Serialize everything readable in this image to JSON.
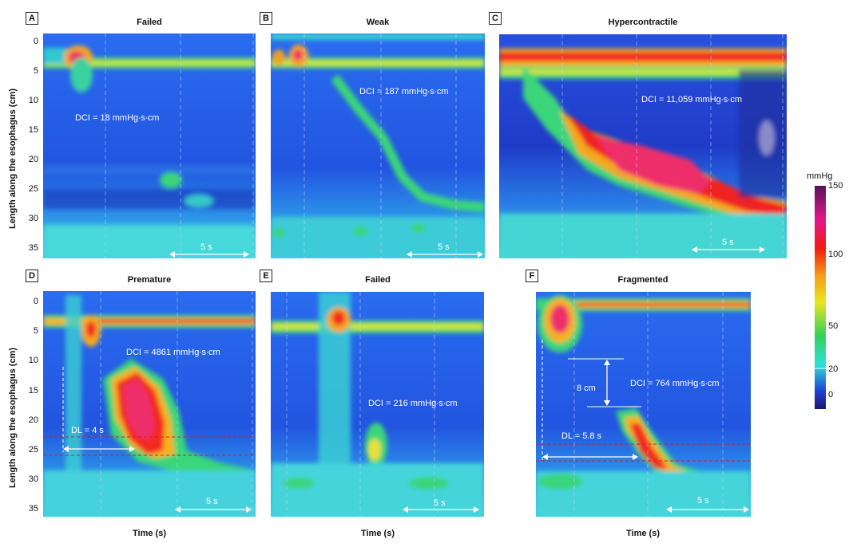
{
  "figure": {
    "ylabel": "Length along the esophagus (cm)",
    "xlabel": "Time (s)"
  },
  "colorbar": {
    "unit": "mmHg",
    "ticks": [
      "150",
      "100",
      "50",
      "20",
      "0"
    ]
  },
  "panels": [
    {
      "letter": "A",
      "title": "Failed",
      "dci": "DCI = 18 mmHg∙s∙cm",
      "scale": "5 s"
    },
    {
      "letter": "B",
      "title": "Weak",
      "dci": "DCI = 187 mmHg∙s∙cm",
      "scale": "5 s"
    },
    {
      "letter": "C",
      "title": "Hypercontractile",
      "dci": "DCI = 11,059 mmHg∙s∙cm",
      "scale": "5 s"
    },
    {
      "letter": "D",
      "title": "Premature",
      "dci": "DCI = 4861 mmHg∙s∙cm",
      "scale": "5 s",
      "dl": "DL = 4 s"
    },
    {
      "letter": "E",
      "title": "Failed",
      "dci": "DCI = 216 mmHg∙s∙cm",
      "scale": "5 s"
    },
    {
      "letter": "F",
      "title": "Fragmented",
      "dci": "DCI = 764 mmHg∙s∙cm",
      "scale": "5 s",
      "dl": "DL = 5.8 s",
      "gap": "8 cm"
    }
  ],
  "chart_data": [
    {
      "type": "heatmap",
      "title": "Failed",
      "ylabel": "Length along the esophagus (cm)",
      "yticks": [
        0,
        5,
        10,
        15,
        20,
        25,
        30,
        35
      ],
      "ylim": [
        0,
        36
      ],
      "value_unit": "mmHg",
      "colorbar_range": [
        0,
        150
      ],
      "annotations": [
        "DCI = 18 mmHg∙s∙cm",
        "5 s"
      ]
    },
    {
      "type": "heatmap",
      "title": "Weak",
      "ylim": [
        0,
        36
      ],
      "value_unit": "mmHg",
      "colorbar_range": [
        0,
        150
      ],
      "annotations": [
        "DCI = 187 mmHg∙s∙cm",
        "5 s"
      ]
    },
    {
      "type": "heatmap",
      "title": "Hypercontractile",
      "ylim": [
        0,
        36
      ],
      "value_unit": "mmHg",
      "colorbar_range": [
        0,
        150
      ],
      "annotations": [
        "DCI = 11,059 mmHg∙s∙cm",
        "5 s"
      ]
    },
    {
      "type": "heatmap",
      "title": "Premature",
      "ylabel": "Length along the esophagus (cm)",
      "xlabel": "Time (s)",
      "yticks": [
        0,
        5,
        10,
        15,
        20,
        25,
        30,
        35
      ],
      "ylim": [
        0,
        36
      ],
      "value_unit": "mmHg",
      "colorbar_range": [
        0,
        150
      ],
      "annotations": [
        "DCI = 4861 mmHg∙s∙cm",
        "DL = 4 s",
        "5 s"
      ]
    },
    {
      "type": "heatmap",
      "title": "Failed",
      "xlabel": "Time (s)",
      "ylim": [
        0,
        36
      ],
      "value_unit": "mmHg",
      "colorbar_range": [
        0,
        150
      ],
      "annotations": [
        "DCI = 216 mmHg∙s∙cm",
        "5 s"
      ]
    },
    {
      "type": "heatmap",
      "title": "Fragmented",
      "xlabel": "Time (s)",
      "ylim": [
        0,
        36
      ],
      "value_unit": "mmHg",
      "colorbar_range": [
        0,
        150
      ],
      "annotations": [
        "DCI = 764 mmHg∙s∙cm",
        "DL = 5.8 s",
        "8 cm",
        "5 s"
      ]
    }
  ]
}
